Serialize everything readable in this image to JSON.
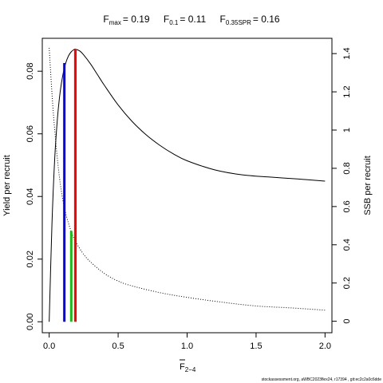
{
  "chart_data": {
    "type": "line",
    "title": {
      "fmax": {
        "base": "F",
        "sub": "max",
        "value": "= 0.19"
      },
      "f01": {
        "base": "F",
        "sub": "0.1",
        "value": "= 0.11"
      },
      "fspr": {
        "base": "F",
        "sub": "0.35SPR",
        "value": "= 0.16"
      }
    },
    "xlabel": {
      "base": "F",
      "sub": "2−4"
    },
    "ylabel_left": "Yield per recruit",
    "ylabel_right": "SSB per recruit",
    "xlim": [
      -0.05,
      2.05
    ],
    "ylim_left": [
      -0.0035,
      0.0905
    ],
    "ylim_right": [
      -0.06,
      1.48
    ],
    "x_ticks": [
      "0.0",
      "0.5",
      "1.0",
      "1.5",
      "2.0"
    ],
    "x_tick_values": [
      0,
      0.5,
      1,
      1.5,
      2
    ],
    "y_left_ticks": [
      "0.00",
      "0.02",
      "0.04",
      "0.06",
      "0.08"
    ],
    "y_left_tick_values": [
      0,
      0.02,
      0.04,
      0.06,
      0.08
    ],
    "y_right_ticks": [
      "0",
      "0.2",
      "0.4",
      "0.6",
      "0.8",
      "1",
      "1.2",
      "1.4"
    ],
    "y_right_tick_values": [
      0,
      0.2,
      0.4,
      0.6,
      0.8,
      1,
      1.2,
      1.4
    ],
    "grid": false,
    "series": [
      {
        "axis": "left",
        "style": "solid",
        "color": "#000000",
        "x": [
          0,
          0.02,
          0.04,
          0.06,
          0.08,
          0.1,
          0.12,
          0.14,
          0.16,
          0.18,
          0.19,
          0.22,
          0.25,
          0.3,
          0.35,
          0.4,
          0.5,
          0.6,
          0.7,
          0.8,
          0.9,
          1.0,
          1.2,
          1.4,
          1.6,
          1.8,
          2.0
        ],
        "y": [
          0.0,
          0.031,
          0.052,
          0.065,
          0.0735,
          0.079,
          0.0826,
          0.0849,
          0.0862,
          0.0869,
          0.087,
          0.0865,
          0.0852,
          0.0823,
          0.0789,
          0.0755,
          0.0692,
          0.064,
          0.0598,
          0.0564,
          0.0536,
          0.0514,
          0.0485,
          0.0469,
          0.0462,
          0.0456,
          0.0449
        ]
      },
      {
        "axis": "right",
        "style": "dotted",
        "color": "#000000",
        "x": [
          0,
          0.025,
          0.05,
          0.075,
          0.1,
          0.125,
          0.15,
          0.175,
          0.2,
          0.25,
          0.3,
          0.4,
          0.5,
          0.6,
          0.8,
          1.0,
          1.25,
          1.5,
          1.75,
          2.0
        ],
        "y": [
          1.43,
          1.14,
          0.92,
          0.75,
          0.63,
          0.55,
          0.49,
          0.44,
          0.405,
          0.35,
          0.31,
          0.25,
          0.21,
          0.185,
          0.15,
          0.125,
          0.1,
          0.08,
          0.07,
          0.058
        ]
      }
    ],
    "reference_lines": [
      {
        "name": "F0.1",
        "x": 0.11,
        "y": 0.0826,
        "color": "#0000ff"
      },
      {
        "name": "F0.35SPR",
        "x": 0.16,
        "y": 0.029,
        "color": "#00cd00"
      },
      {
        "name": "Fmax",
        "x": 0.19,
        "y": 0.087,
        "color": "#ff0000"
      }
    ]
  },
  "footer": "stockassessment.org, aWBC2023flex24, r17394 , git:ec2c2a0c6dde"
}
